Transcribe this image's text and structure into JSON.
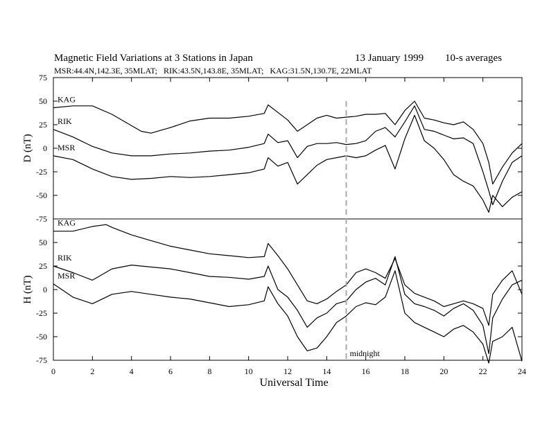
{
  "chart_data": {
    "type": "line",
    "title": "Magnetic Field Variations at 3 Stations in Japan",
    "date": "13 January 1999",
    "averaging": "10-s averages",
    "subtitle": "MSR:44.4N,142.3E, 35MLAT;   RIK:43.5N,143.8E, 35MLAT;   KAG:31.5N,130.7E, 22MLAT",
    "xlabel": "Universal Time",
    "xlim": [
      0,
      24
    ],
    "xticks": [
      "0",
      "2",
      "4",
      "6",
      "8",
      "10",
      "12",
      "14",
      "16",
      "18",
      "20",
      "22",
      "24"
    ],
    "marker": {
      "x": 15,
      "label": "midnight",
      "style": "dashed"
    },
    "panels": [
      {
        "id": "D",
        "ylabel": "D (nT)",
        "ylim": [
          -75,
          75
        ],
        "yticks": [
          "75",
          "50",
          "25",
          "0",
          "-25",
          "-50",
          "-75"
        ],
        "series": [
          {
            "name": "KAG",
            "x": [
              0,
              1,
              2,
              3,
              4,
              4.5,
              5,
              6,
              7,
              8,
              9,
              10,
              10.8,
              11,
              11.5,
              12,
              12.5,
              13,
              13.5,
              14,
              14.5,
              15,
              15.5,
              16,
              16.5,
              17,
              17.5,
              18,
              18.5,
              19,
              19.5,
              20,
              20.5,
              21,
              21.5,
              22,
              22.3,
              22.5,
              23,
              23.5,
              24
            ],
            "y": [
              43,
              45,
              45,
              36,
              24,
              18,
              16,
              22,
              29,
              32,
              32,
              34,
              37,
              46,
              38,
              30,
              18,
              25,
              32,
              35,
              32,
              33,
              34,
              36,
              36,
              37,
              25,
              40,
              50,
              32,
              30,
              27,
              25,
              28,
              20,
              5,
              -15,
              -38,
              -20,
              -5,
              5
            ]
          },
          {
            "name": "RIK",
            "x": [
              0,
              1,
              2,
              3,
              4,
              5,
              6,
              7,
              8,
              9,
              10,
              10.8,
              11,
              11.5,
              12,
              12.5,
              13,
              13.5,
              14,
              14.5,
              15,
              15.5,
              16,
              16.5,
              17,
              17.5,
              18,
              18.5,
              19,
              19.5,
              20,
              20.5,
              21,
              21.5,
              22,
              22.3,
              22.5,
              23,
              23.5,
              24
            ],
            "y": [
              20,
              12,
              2,
              -5,
              -8,
              -8,
              -6,
              -5,
              -3,
              -2,
              1,
              5,
              15,
              6,
              8,
              -10,
              2,
              5,
              5,
              6,
              4,
              5,
              8,
              18,
              22,
              12,
              28,
              45,
              20,
              18,
              14,
              10,
              11,
              5,
              -25,
              -45,
              -60,
              -35,
              -15,
              -8
            ]
          },
          {
            "name": "MSR",
            "x": [
              0,
              1,
              2,
              3,
              4,
              5,
              6,
              7,
              8,
              9,
              10,
              10.8,
              11,
              11.5,
              12,
              12.5,
              13,
              13.5,
              14,
              14.5,
              15,
              15.5,
              16,
              16.5,
              17,
              17.5,
              18,
              18.5,
              19,
              19.5,
              20,
              20.5,
              21,
              21.5,
              22,
              22.3,
              22.5,
              23,
              23.5,
              24
            ],
            "y": [
              -8,
              -12,
              -22,
              -30,
              -33,
              -32,
              -30,
              -31,
              -30,
              -28,
              -26,
              -22,
              -10,
              -19,
              -15,
              -38,
              -28,
              -18,
              -12,
              -10,
              -8,
              -10,
              -8,
              -2,
              3,
              -22,
              10,
              35,
              8,
              0,
              -12,
              -28,
              -35,
              -40,
              -55,
              -68,
              -50,
              -62,
              -52,
              -46
            ]
          }
        ]
      },
      {
        "id": "H",
        "ylabel": "H (nT)",
        "ylim": [
          -75,
          75
        ],
        "yticks": [
          "75",
          "50",
          "25",
          "0",
          "-25",
          "-50",
          "-75"
        ],
        "series": [
          {
            "name": "KAG",
            "x": [
              0,
              1,
              2,
              2.7,
              3,
              4,
              5,
              6,
              7,
              8,
              9,
              10,
              10.8,
              11,
              11.5,
              12,
              12.5,
              13,
              13.5,
              14,
              14.5,
              15,
              15.5,
              16,
              16.5,
              17,
              17.5,
              18,
              18.5,
              19,
              19.5,
              20,
              20.5,
              21,
              21.5,
              22,
              22.3,
              22.5,
              23,
              23.5,
              24
            ],
            "y": [
              62,
              62,
              67,
              69,
              66,
              58,
              52,
              46,
              42,
              38,
              36,
              34,
              35,
              49,
              36,
              22,
              5,
              -12,
              -15,
              -10,
              -2,
              5,
              18,
              22,
              18,
              12,
              33,
              5,
              -4,
              -8,
              -12,
              -18,
              -15,
              -12,
              -15,
              -20,
              -38,
              -5,
              10,
              20,
              -5
            ]
          },
          {
            "name": "RIK",
            "x": [
              0,
              1,
              2,
              3,
              4,
              5,
              6,
              7,
              8,
              9,
              10,
              10.8,
              11,
              11.5,
              12,
              12.5,
              13,
              13.5,
              14,
              14.5,
              15,
              15.5,
              16,
              16.5,
              17,
              17.5,
              18,
              18.5,
              19,
              19.5,
              20,
              20.5,
              21,
              21.5,
              22,
              22.3,
              22.5,
              23,
              23.5,
              24
            ],
            "y": [
              25,
              18,
              10,
              22,
              26,
              24,
              22,
              18,
              14,
              13,
              11,
              14,
              25,
              0,
              -8,
              -22,
              -40,
              -30,
              -25,
              -15,
              -12,
              0,
              8,
              12,
              5,
              35,
              -5,
              -15,
              -18,
              -22,
              -28,
              -20,
              -15,
              -22,
              -38,
              -68,
              -30,
              -10,
              5,
              10
            ]
          },
          {
            "name": "MSR",
            "x": [
              0,
              1,
              2,
              3,
              4,
              5,
              6,
              7,
              8,
              9,
              10,
              10.8,
              11,
              11.5,
              12,
              12.5,
              13,
              13.5,
              14,
              14.5,
              15,
              15.5,
              16,
              16.5,
              17,
              17.5,
              18,
              18.5,
              19,
              19.5,
              20,
              20.5,
              21,
              21.5,
              22,
              22.3,
              22.5,
              23,
              23.5,
              24
            ],
            "y": [
              6,
              -8,
              -15,
              -5,
              -2,
              -5,
              -8,
              -10,
              -14,
              -18,
              -16,
              -12,
              3,
              -15,
              -28,
              -50,
              -65,
              -62,
              -50,
              -35,
              -28,
              -18,
              -14,
              -16,
              -8,
              20,
              -25,
              -35,
              -40,
              -45,
              -50,
              -42,
              -38,
              -45,
              -58,
              -78,
              -55,
              -50,
              -40,
              -76
            ]
          }
        ]
      }
    ]
  }
}
